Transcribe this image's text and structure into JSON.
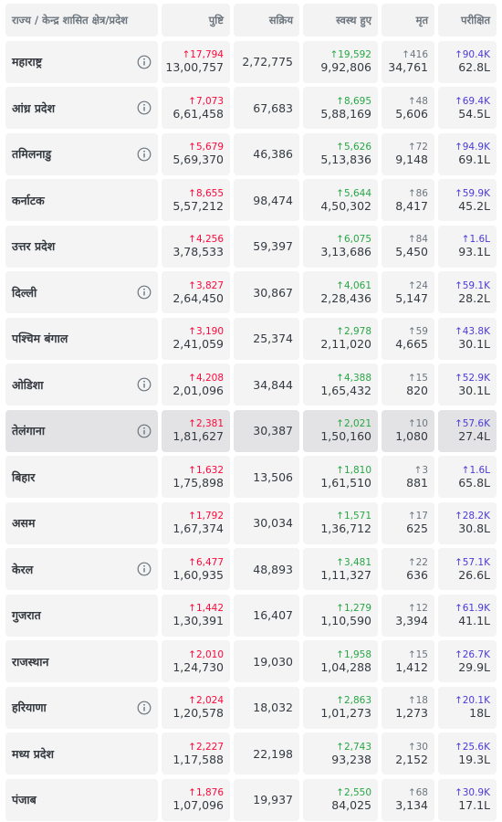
{
  "table": {
    "header": [
      "राज्य / केन्द्र शासित क्षेत्र/प्रदेश",
      "पुष्टि",
      "सक्रिय",
      "स्वस्थ हुए",
      "मृत",
      "परीक्षित"
    ],
    "rows": [
      {
        "name": "महाराष्ट्र",
        "info": true,
        "confirmed_delta": "↑17,794",
        "confirmed": "13,00,757",
        "active": "2,72,775",
        "recovered_delta": "↑19,592",
        "recovered": "9,92,806",
        "deceased_delta": "↑416",
        "deceased": "34,761",
        "tested_delta": "↑90.4K",
        "tested": "62.8L"
      },
      {
        "name": "आंध्र प्रदेश",
        "info": true,
        "confirmed_delta": "↑7,073",
        "confirmed": "6,61,458",
        "active": "67,683",
        "recovered_delta": "↑8,695",
        "recovered": "5,88,169",
        "deceased_delta": "↑48",
        "deceased": "5,606",
        "tested_delta": "↑69.4K",
        "tested": "54.5L"
      },
      {
        "name": "तमिलनाडु",
        "info": true,
        "confirmed_delta": "↑5,679",
        "confirmed": "5,69,370",
        "active": "46,386",
        "recovered_delta": "↑5,626",
        "recovered": "5,13,836",
        "deceased_delta": "↑72",
        "deceased": "9,148",
        "tested_delta": "↑94.9K",
        "tested": "69.1L"
      },
      {
        "name": "कर्नाटक",
        "info": false,
        "confirmed_delta": "↑8,655",
        "confirmed": "5,57,212",
        "active": "98,474",
        "recovered_delta": "↑5,644",
        "recovered": "4,50,302",
        "deceased_delta": "↑86",
        "deceased": "8,417",
        "tested_delta": "↑59.9K",
        "tested": "45.2L"
      },
      {
        "name": "उत्तर प्रदेश",
        "info": false,
        "confirmed_delta": "↑4,256",
        "confirmed": "3,78,533",
        "active": "59,397",
        "recovered_delta": "↑6,075",
        "recovered": "3,13,686",
        "deceased_delta": "↑84",
        "deceased": "5,450",
        "tested_delta": "↑1.6L",
        "tested": "93.1L"
      },
      {
        "name": "दिल्ली",
        "info": true,
        "confirmed_delta": "↑3,827",
        "confirmed": "2,64,450",
        "active": "30,867",
        "recovered_delta": "↑4,061",
        "recovered": "2,28,436",
        "deceased_delta": "↑24",
        "deceased": "5,147",
        "tested_delta": "↑59.1K",
        "tested": "28.2L"
      },
      {
        "name": "पश्चिम बंगाल",
        "info": false,
        "confirmed_delta": "↑3,190",
        "confirmed": "2,41,059",
        "active": "25,374",
        "recovered_delta": "↑2,978",
        "recovered": "2,11,020",
        "deceased_delta": "↑59",
        "deceased": "4,665",
        "tested_delta": "↑43.8K",
        "tested": "30.1L"
      },
      {
        "name": "ओडिशा",
        "info": true,
        "confirmed_delta": "↑4,208",
        "confirmed": "2,01,096",
        "active": "34,844",
        "recovered_delta": "↑4,388",
        "recovered": "1,65,432",
        "deceased_delta": "↑15",
        "deceased": "820",
        "tested_delta": "↑52.9K",
        "tested": "30.1L"
      },
      {
        "name": "तेलंगाना",
        "info": true,
        "highlighted": true,
        "confirmed_delta": "↑2,381",
        "confirmed": "1,81,627",
        "active": "30,387",
        "recovered_delta": "↑2,021",
        "recovered": "1,50,160",
        "deceased_delta": "↑10",
        "deceased": "1,080",
        "tested_delta": "↑57.6K",
        "tested": "27.4L"
      },
      {
        "name": "बिहार",
        "info": false,
        "confirmed_delta": "↑1,632",
        "confirmed": "1,75,898",
        "active": "13,506",
        "recovered_delta": "↑1,810",
        "recovered": "1,61,510",
        "deceased_delta": "↑3",
        "deceased": "881",
        "tested_delta": "↑1.6L",
        "tested": "65.8L"
      },
      {
        "name": "असम",
        "info": false,
        "confirmed_delta": "↑1,792",
        "confirmed": "1,67,374",
        "active": "30,034",
        "recovered_delta": "↑1,571",
        "recovered": "1,36,712",
        "deceased_delta": "↑17",
        "deceased": "625",
        "tested_delta": "↑28.2K",
        "tested": "30.8L"
      },
      {
        "name": "केरल",
        "info": true,
        "confirmed_delta": "↑6,477",
        "confirmed": "1,60,935",
        "active": "48,893",
        "recovered_delta": "↑3,481",
        "recovered": "1,11,327",
        "deceased_delta": "↑22",
        "deceased": "636",
        "tested_delta": "↑57.1K",
        "tested": "26.6L"
      },
      {
        "name": "गुजरात",
        "info": false,
        "confirmed_delta": "↑1,442",
        "confirmed": "1,30,391",
        "active": "16,407",
        "recovered_delta": "↑1,279",
        "recovered": "1,10,590",
        "deceased_delta": "↑12",
        "deceased": "3,394",
        "tested_delta": "↑61.9K",
        "tested": "41.1L"
      },
      {
        "name": "राजस्थान",
        "info": false,
        "confirmed_delta": "↑2,010",
        "confirmed": "1,24,730",
        "active": "19,030",
        "recovered_delta": "↑1,958",
        "recovered": "1,04,288",
        "deceased_delta": "↑15",
        "deceased": "1,412",
        "tested_delta": "↑26.7K",
        "tested": "29.9L"
      },
      {
        "name": "हरियाणा",
        "info": true,
        "confirmed_delta": "↑2,024",
        "confirmed": "1,20,578",
        "active": "18,032",
        "recovered_delta": "↑2,863",
        "recovered": "1,01,273",
        "deceased_delta": "↑18",
        "deceased": "1,273",
        "tested_delta": "↑20.1K",
        "tested": "18L"
      },
      {
        "name": "मध्य प्रदेश",
        "info": false,
        "confirmed_delta": "↑2,227",
        "confirmed": "1,17,588",
        "active": "22,198",
        "recovered_delta": "↑2,743",
        "recovered": "93,238",
        "deceased_delta": "↑30",
        "deceased": "2,152",
        "tested_delta": "↑25.6K",
        "tested": "19.3L"
      },
      {
        "name": "पंजाब",
        "info": false,
        "confirmed_delta": "↑1,876",
        "confirmed": "1,07,096",
        "active": "19,937",
        "recovered_delta": "↑2,550",
        "recovered": "84,025",
        "deceased_delta": "↑68",
        "deceased": "3,134",
        "tested_delta": "↑30.9K",
        "tested": "17.1L"
      }
    ]
  }
}
